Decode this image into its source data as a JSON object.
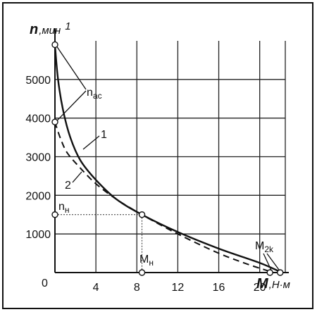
{
  "chart_data": {
    "type": "line",
    "y_axis": {
      "symbol": "n",
      "unit": "мин",
      "unit_superscript": "1",
      "ticks": [
        1000,
        2000,
        3000,
        4000,
        5000
      ],
      "ylim": [
        0,
        6000
      ]
    },
    "x_axis": {
      "symbol": "M",
      "unit": "Н·м",
      "ticks": [
        4,
        8,
        12,
        16,
        20
      ],
      "xlim": [
        0,
        22.5
      ]
    },
    "origin_label": "0",
    "grid": true,
    "series": [
      {
        "name": "1",
        "style": "solid",
        "points": [
          [
            0,
            5900
          ],
          [
            0.3,
            5000
          ],
          [
            0.8,
            4200
          ],
          [
            1.5,
            3500
          ],
          [
            2.5,
            2900
          ],
          [
            4,
            2400
          ],
          [
            6,
            1900
          ],
          [
            8.5,
            1500
          ],
          [
            12,
            1050
          ],
          [
            16,
            620
          ],
          [
            20,
            250
          ],
          [
            22,
            20
          ]
        ]
      },
      {
        "name": "2",
        "style": "dashed",
        "points": [
          [
            0,
            3900
          ],
          [
            0.5,
            3500
          ],
          [
            1.2,
            3100
          ],
          [
            2.5,
            2700
          ],
          [
            4,
            2300
          ],
          [
            6,
            1900
          ],
          [
            8.5,
            1500
          ],
          [
            12,
            1000
          ],
          [
            16,
            500
          ],
          [
            19,
            200
          ],
          [
            21,
            30
          ]
        ]
      }
    ],
    "markers": [
      {
        "x": 0,
        "y": 5900
      },
      {
        "x": 0,
        "y": 3900
      },
      {
        "x": 0,
        "y": 1500
      },
      {
        "x": 8.5,
        "y": 1500
      },
      {
        "x": 8.5,
        "y": 0
      },
      {
        "x": 21,
        "y": 0
      },
      {
        "x": 22,
        "y": 0
      }
    ],
    "annotations": {
      "n_ac": {
        "main": "n",
        "sub": "ac"
      },
      "n_h": {
        "main": "n",
        "sub": "н"
      },
      "M_h": {
        "main": "M",
        "sub": "н"
      },
      "M_2k": {
        "main": "M",
        "sub": "2k"
      },
      "curve1": "1",
      "curve2": "2"
    }
  }
}
